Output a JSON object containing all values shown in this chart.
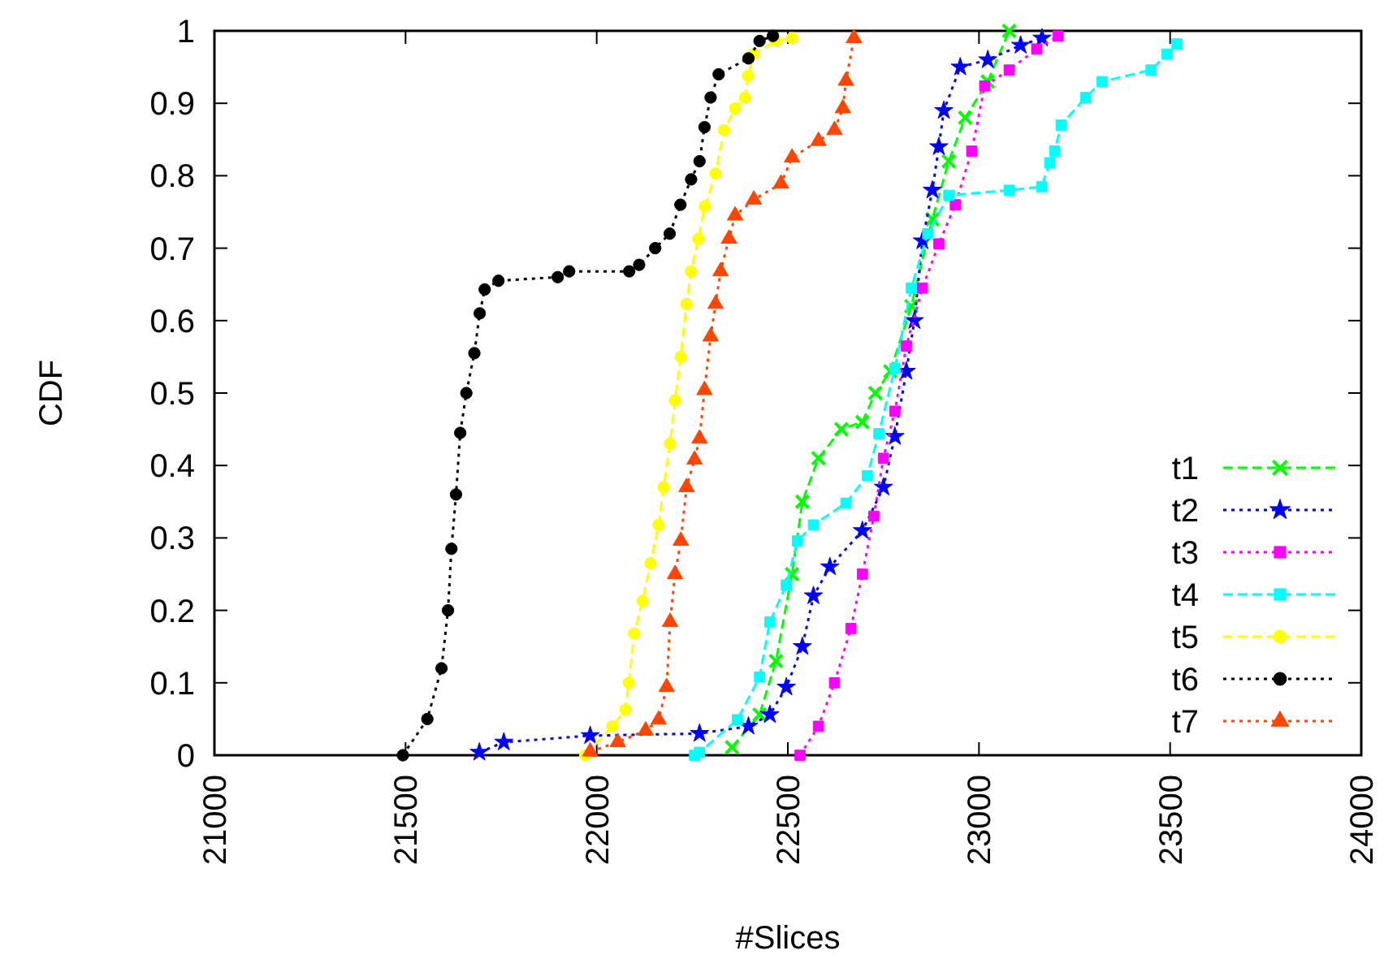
{
  "chart_data": {
    "type": "line",
    "xlabel": "#Slices",
    "ylabel": "CDF",
    "xlim": [
      21000,
      24000
    ],
    "xticks": [
      21000,
      21500,
      22000,
      22500,
      23000,
      23500,
      24000
    ],
    "ylim": [
      0,
      1
    ],
    "yticks": [
      0,
      0.1,
      0.2,
      0.3,
      0.4,
      0.5,
      0.6,
      0.7,
      0.8,
      0.9,
      1
    ],
    "grid": false,
    "legend": "bottom right",
    "series": [
      {
        "name": "t1",
        "color": "#00ff00",
        "marker": "cross",
        "line_style": "dashed",
        "x": [
          22354,
          22426,
          22469,
          22511,
          22538,
          22580,
          22640,
          22695,
          22729,
          22768,
          22823,
          22878,
          22921,
          22964,
          23023,
          23079
        ],
        "values": [
          0.011,
          0.056,
          0.13,
          0.25,
          0.35,
          0.41,
          0.45,
          0.46,
          0.5,
          0.53,
          0.62,
          0.74,
          0.82,
          0.88,
          0.93,
          1
        ]
      },
      {
        "name": "t2",
        "color": "#0000ff",
        "marker": "star",
        "line_style": "dotted",
        "x": [
          21693,
          21757,
          21983,
          22269,
          22397,
          22453,
          22496,
          22538,
          22567,
          22610,
          22695,
          22750,
          22780,
          22810,
          22831,
          22852,
          22878,
          22895,
          22908,
          22951,
          23023,
          23109,
          23165
        ],
        "values": [
          0.004,
          0.018,
          0.027,
          0.03,
          0.04,
          0.056,
          0.094,
          0.15,
          0.22,
          0.26,
          0.31,
          0.37,
          0.44,
          0.53,
          0.6,
          0.71,
          0.78,
          0.84,
          0.89,
          0.95,
          0.96,
          0.98,
          0.99
        ]
      },
      {
        "name": "t3",
        "color": "#ff00ff",
        "marker": "square",
        "line_style": "dotted",
        "x": [
          22532,
          22580,
          22622,
          22665,
          22695,
          22725,
          22750,
          22780,
          22810,
          22852,
          22895,
          22938,
          22981,
          23015,
          23079,
          23151,
          23207
        ],
        "values": [
          0,
          0.04,
          0.1,
          0.175,
          0.25,
          0.33,
          0.41,
          0.475,
          0.565,
          0.645,
          0.706,
          0.76,
          0.834,
          0.924,
          0.946,
          0.975,
          0.993
        ]
      },
      {
        "name": "t4",
        "color": "#00ffff",
        "marker": "square",
        "line_style": "dashed",
        "x": [
          22256,
          22269,
          22368,
          22426,
          22453,
          22496,
          22525,
          22567,
          22652,
          22708,
          22738,
          22780,
          22823,
          22866,
          22921,
          23079,
          23164,
          23185,
          23198,
          23215,
          23279,
          23322,
          23450,
          23492,
          23518
        ],
        "values": [
          0,
          0.004,
          0.049,
          0.108,
          0.184,
          0.235,
          0.296,
          0.318,
          0.348,
          0.386,
          0.444,
          0.534,
          0.645,
          0.72,
          0.773,
          0.78,
          0.785,
          0.818,
          0.834,
          0.87,
          0.908,
          0.93,
          0.946,
          0.968,
          0.982
        ]
      },
      {
        "name": "t5",
        "color": "#ffff00",
        "marker": "circle",
        "line_style": "dashed",
        "x": [
          21970,
          22041,
          22075,
          22084,
          22098,
          22120,
          22141,
          22162,
          22175,
          22192,
          22205,
          22220,
          22235,
          22247,
          22266,
          22283,
          22311,
          22333,
          22362,
          22388,
          22396,
          22411,
          22469,
          22511
        ],
        "values": [
          0,
          0.04,
          0.063,
          0.1,
          0.168,
          0.213,
          0.265,
          0.318,
          0.37,
          0.43,
          0.49,
          0.55,
          0.623,
          0.668,
          0.713,
          0.758,
          0.803,
          0.863,
          0.893,
          0.908,
          0.938,
          0.968,
          0.986,
          0.99
        ]
      },
      {
        "name": "t6",
        "color": "#000000",
        "marker": "circle",
        "line_style": "dotted",
        "x": [
          21493,
          21557,
          21594,
          21611,
          21620,
          21632,
          21643,
          21659,
          21680,
          21694,
          21707,
          21743,
          21898,
          21928,
          22085,
          22111,
          22153,
          22191,
          22219,
          22247,
          22269,
          22282,
          22298,
          22319,
          22397,
          22426,
          22461
        ],
        "values": [
          0,
          0.05,
          0.12,
          0.2,
          0.285,
          0.36,
          0.445,
          0.5,
          0.555,
          0.61,
          0.643,
          0.655,
          0.66,
          0.668,
          0.668,
          0.677,
          0.7,
          0.72,
          0.76,
          0.795,
          0.82,
          0.867,
          0.908,
          0.94,
          0.962,
          0.986,
          0.993
        ]
      },
      {
        "name": "t7",
        "color": "#ff4500",
        "marker": "triangle",
        "line_style": "dotted",
        "x": [
          21983,
          22055,
          22128,
          22162,
          22183,
          22192,
          22205,
          22220,
          22235,
          22256,
          22269,
          22282,
          22298,
          22311,
          22324,
          22346,
          22362,
          22411,
          22482,
          22511,
          22580,
          22622,
          22644,
          22652,
          22673
        ],
        "values": [
          0.005,
          0.018,
          0.034,
          0.049,
          0.094,
          0.184,
          0.25,
          0.296,
          0.37,
          0.408,
          0.437,
          0.504,
          0.578,
          0.623,
          0.668,
          0.713,
          0.745,
          0.767,
          0.789,
          0.825,
          0.848,
          0.863,
          0.893,
          0.931,
          0.99
        ]
      }
    ]
  }
}
